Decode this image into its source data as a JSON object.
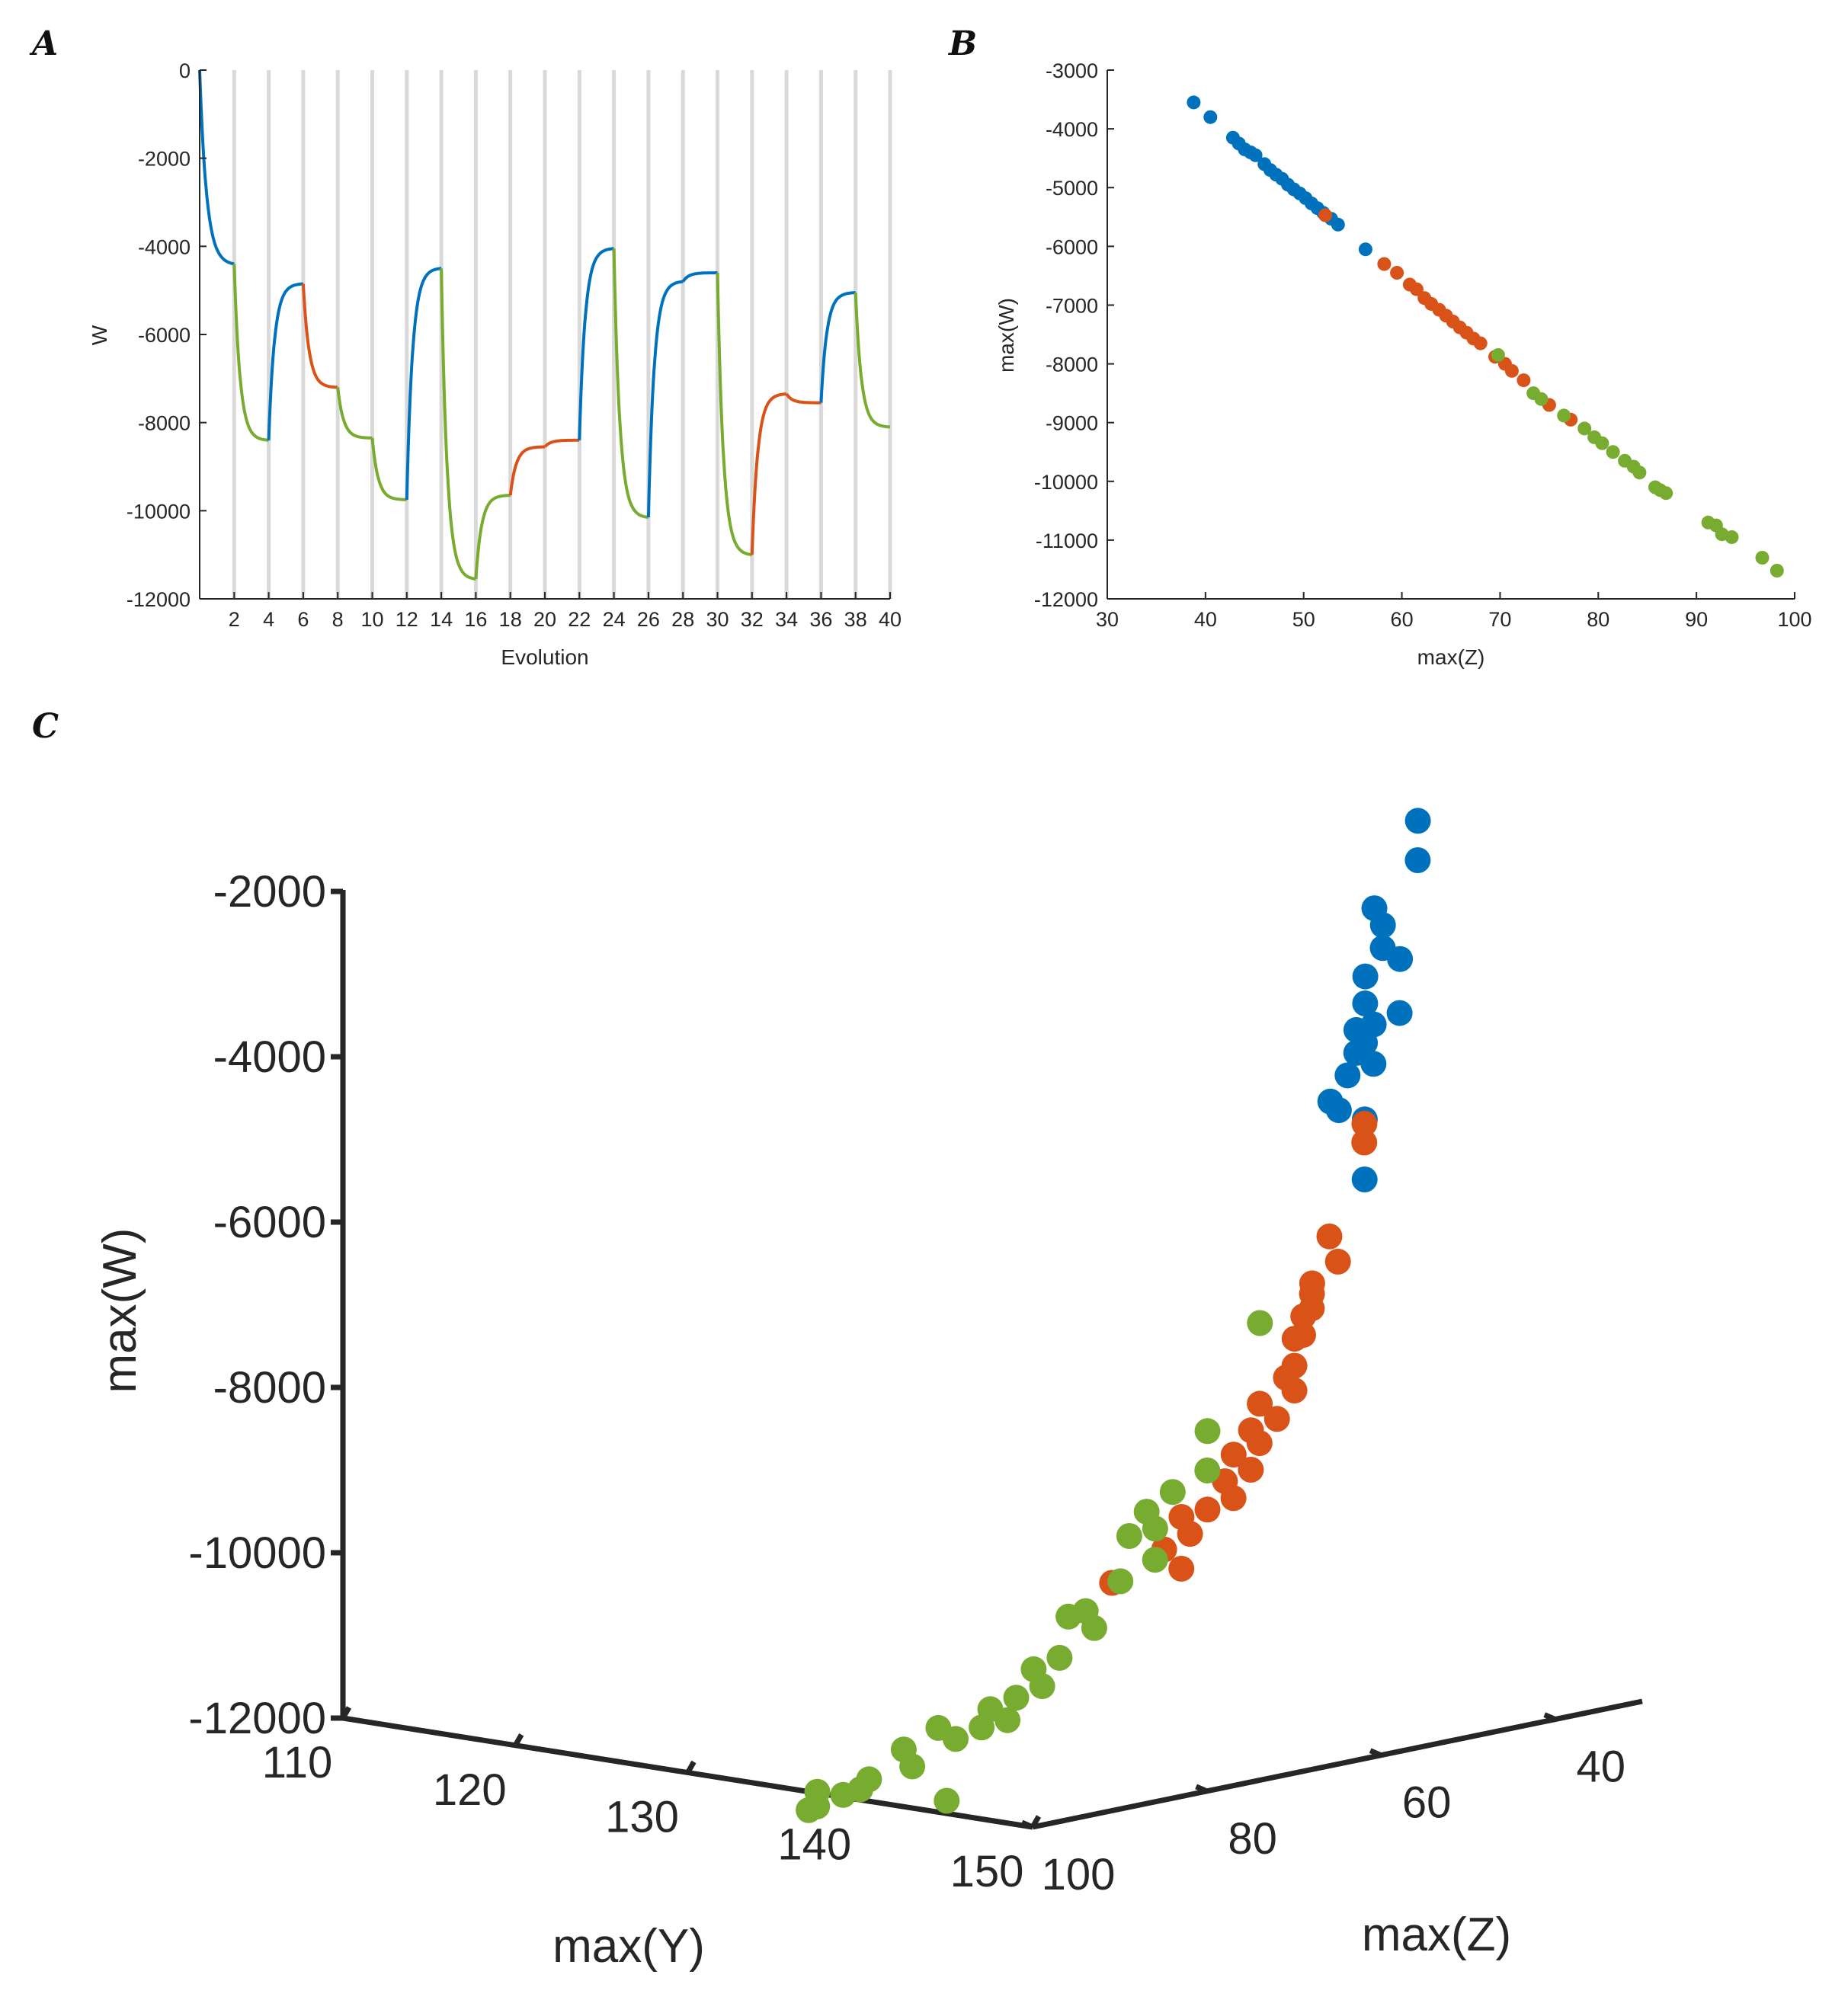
{
  "panels": {
    "A": {
      "letter": "A"
    },
    "B": {
      "letter": "B"
    },
    "C": {
      "letter": "C"
    }
  },
  "colors": {
    "blue": "#0072BD",
    "orange": "#D95319",
    "green": "#77AC30",
    "axis": "#262626",
    "grid": "#d9d9d9"
  },
  "chart_data": [
    {
      "id": "A",
      "type": "line",
      "title": "",
      "xlabel": "Evolution",
      "ylabel": "W",
      "xlim": [
        0,
        40
      ],
      "ylim": [
        -12000,
        0
      ],
      "xticks": [
        2,
        4,
        6,
        8,
        10,
        12,
        14,
        16,
        18,
        20,
        22,
        24,
        26,
        28,
        30,
        32,
        34,
        36,
        38,
        40
      ],
      "yticks": [
        0,
        -2000,
        -4000,
        -6000,
        -8000,
        -10000,
        -12000
      ],
      "vertical_gridlines": [
        2,
        4,
        6,
        8,
        10,
        12,
        14,
        16,
        18,
        20,
        22,
        24,
        26,
        28,
        30,
        32,
        34,
        36,
        38,
        40
      ],
      "segments": [
        {
          "x0": 0,
          "x1": 2,
          "start": 0,
          "end": -4400,
          "color": "blue"
        },
        {
          "x0": 2,
          "x1": 4,
          "start": -4400,
          "end": -8400,
          "color": "green"
        },
        {
          "x0": 4,
          "x1": 6,
          "start": -8400,
          "end": -4850,
          "color": "blue"
        },
        {
          "x0": 6,
          "x1": 8,
          "start": -4850,
          "end": -7200,
          "color": "orange"
        },
        {
          "x0": 8,
          "x1": 10,
          "start": -7200,
          "end": -8350,
          "color": "green"
        },
        {
          "x0": 10,
          "x1": 12,
          "start": -8350,
          "end": -9750,
          "color": "green"
        },
        {
          "x0": 12,
          "x1": 14,
          "start": -9750,
          "end": -4500,
          "color": "blue"
        },
        {
          "x0": 14,
          "x1": 16,
          "start": -4500,
          "end": -11550,
          "color": "green"
        },
        {
          "x0": 16,
          "x1": 18,
          "start": -11550,
          "end": -9650,
          "color": "green"
        },
        {
          "x0": 18,
          "x1": 20,
          "start": -9650,
          "end": -8550,
          "color": "orange"
        },
        {
          "x0": 20,
          "x1": 22,
          "start": -8550,
          "end": -8400,
          "color": "orange"
        },
        {
          "x0": 22,
          "x1": 24,
          "start": -8400,
          "end": -4050,
          "color": "blue"
        },
        {
          "x0": 24,
          "x1": 26,
          "start": -4050,
          "end": -10150,
          "color": "green"
        },
        {
          "x0": 26,
          "x1": 28,
          "start": -10150,
          "end": -4800,
          "color": "blue"
        },
        {
          "x0": 28,
          "x1": 30,
          "start": -4800,
          "end": -4600,
          "color": "blue"
        },
        {
          "x0": 30,
          "x1": 32,
          "start": -4600,
          "end": -11000,
          "color": "green"
        },
        {
          "x0": 32,
          "x1": 34,
          "start": -11000,
          "end": -7350,
          "color": "orange"
        },
        {
          "x0": 34,
          "x1": 36,
          "start": -7350,
          "end": -7550,
          "color": "orange"
        },
        {
          "x0": 36,
          "x1": 38,
          "start": -7550,
          "end": -5050,
          "color": "blue"
        },
        {
          "x0": 38,
          "x1": 40,
          "start": -5050,
          "end": -8100,
          "color": "green"
        }
      ]
    },
    {
      "id": "B",
      "type": "scatter",
      "title": "",
      "xlabel": "max(Z)",
      "ylabel": "max(W)",
      "xlim": [
        30,
        100
      ],
      "ylim": [
        -12000,
        -3000
      ],
      "xticks": [
        30,
        40,
        50,
        60,
        70,
        80,
        90,
        100
      ],
      "yticks": [
        -3000,
        -4000,
        -5000,
        -6000,
        -7000,
        -8000,
        -9000,
        -10000,
        -11000,
        -12000
      ],
      "series": [
        {
          "name": "blue",
          "color": "blue",
          "points": [
            [
              38.8,
              -3550
            ],
            [
              40.5,
              -3800
            ],
            [
              42.8,
              -4150
            ],
            [
              43.4,
              -4250
            ],
            [
              44,
              -4350
            ],
            [
              44.6,
              -4400
            ],
            [
              45.1,
              -4450
            ],
            [
              46,
              -4600
            ],
            [
              46.6,
              -4700
            ],
            [
              47.2,
              -4780
            ],
            [
              47.8,
              -4850
            ],
            [
              48.4,
              -4950
            ],
            [
              49,
              -5030
            ],
            [
              49.6,
              -5100
            ],
            [
              50.2,
              -5180
            ],
            [
              50.8,
              -5270
            ],
            [
              51.4,
              -5350
            ],
            [
              52,
              -5430
            ],
            [
              52.8,
              -5530
            ],
            [
              53.5,
              -5630
            ],
            [
              56.3,
              -6050
            ]
          ]
        },
        {
          "name": "orange",
          "color": "orange",
          "points": [
            [
              52.2,
              -5470
            ],
            [
              58.2,
              -6300
            ],
            [
              59.5,
              -6450
            ],
            [
              60.8,
              -6650
            ],
            [
              61.5,
              -6730
            ],
            [
              62.3,
              -6880
            ],
            [
              63,
              -6980
            ],
            [
              63.8,
              -7080
            ],
            [
              64.5,
              -7180
            ],
            [
              65.2,
              -7280
            ],
            [
              65.9,
              -7380
            ],
            [
              66.6,
              -7470
            ],
            [
              67.3,
              -7570
            ],
            [
              68,
              -7650
            ],
            [
              69.5,
              -7880
            ],
            [
              70.5,
              -8000
            ],
            [
              71.2,
              -8120
            ],
            [
              72.4,
              -8280
            ],
            [
              75,
              -8700
            ],
            [
              77.2,
              -8950
            ]
          ]
        },
        {
          "name": "green",
          "color": "green",
          "points": [
            [
              69.8,
              -7850
            ],
            [
              73.4,
              -8500
            ],
            [
              74.2,
              -8600
            ],
            [
              76.5,
              -8880
            ],
            [
              78.6,
              -9100
            ],
            [
              79.6,
              -9250
            ],
            [
              80.4,
              -9350
            ],
            [
              81.5,
              -9500
            ],
            [
              82.7,
              -9650
            ],
            [
              83.6,
              -9750
            ],
            [
              84.2,
              -9850
            ],
            [
              85.8,
              -10100
            ],
            [
              86.3,
              -10150
            ],
            [
              86.9,
              -10200
            ],
            [
              91.2,
              -10700
            ],
            [
              92,
              -10750
            ],
            [
              92.6,
              -10900
            ],
            [
              93.6,
              -10950
            ],
            [
              96.7,
              -11300
            ],
            [
              98.2,
              -11520
            ]
          ]
        }
      ]
    },
    {
      "id": "C",
      "type": "scatter3d",
      "title": "",
      "xlabel": "max(Y)",
      "ylabel": "max(Z)",
      "zlabel": "max(W)",
      "xlim": [
        110,
        150
      ],
      "ylim": [
        30,
        100
      ],
      "zlim": [
        -12000,
        -2000
      ],
      "xticks": [
        110,
        120,
        130,
        140,
        150
      ],
      "yticks": [
        40,
        60,
        80,
        100
      ],
      "zticks": [
        -2000,
        -4000,
        -6000,
        -8000,
        -10000,
        -12000
      ],
      "series": [
        {
          "name": "blue",
          "color": "blue",
          "points": [
            [
              138,
              32,
              -1700
            ],
            [
              139,
              34,
              -2100
            ],
            [
              138,
              37,
              -2650
            ],
            [
              139,
              38,
              -2800
            ],
            [
              140,
              40,
              -3000
            ],
            [
              141,
              40,
              -3100
            ],
            [
              140,
              42,
              -3300
            ],
            [
              141,
              44,
              -3550
            ],
            [
              142,
              45,
              -3750
            ],
            [
              141,
              45,
              -3850
            ],
            [
              142,
              46,
              -3950
            ],
            [
              143,
              47,
              -4150
            ],
            [
              142,
              48,
              -4300
            ],
            [
              141,
              48,
              -4650
            ],
            [
              142,
              49,
              -4700
            ],
            [
              143,
              48,
              -4800
            ],
            [
              144,
              50,
              -5450
            ],
            [
              143,
              44,
              -3600
            ],
            [
              142,
              47,
              -4050
            ]
          ]
        },
        {
          "name": "orange",
          "color": "orange",
          "points": [
            [
              145,
              52,
              -4700
            ],
            [
              146,
              54,
              -4850
            ],
            [
              146,
              58,
              -5900
            ],
            [
              147,
              59,
              -6150
            ],
            [
              145,
              58,
              -6500
            ],
            [
              146,
              60,
              -6550
            ],
            [
              147,
              62,
              -6650
            ],
            [
              146,
              61,
              -6800
            ],
            [
              147,
              63,
              -6950
            ],
            [
              146,
              62,
              -7050
            ],
            [
              147,
              64,
              -7300
            ],
            [
              146,
              63,
              -7500
            ],
            [
              147,
              64,
              -7600
            ],
            [
              146,
              66,
              -7750
            ],
            [
              147,
              66,
              -7900
            ],
            [
              146,
              67,
              -8050
            ],
            [
              147,
              68,
              -8150
            ],
            [
              146,
              69,
              -8300
            ],
            [
              147,
              69,
              -8450
            ],
            [
              146,
              70,
              -8600
            ],
            [
              147,
              71,
              -8750
            ],
            [
              146,
              72,
              -8900
            ],
            [
              145,
              73,
              -9000
            ],
            [
              146,
              74,
              -9150
            ],
            [
              145,
              75,
              -9350
            ],
            [
              146,
              75,
              -9550
            ],
            [
              144,
              79,
              -9700
            ]
          ]
        },
        {
          "name": "green",
          "color": "green",
          "points": [
            [
              145,
              64,
              -6850
            ],
            [
              146,
              72,
              -7950
            ],
            [
              147,
              74,
              -8350
            ],
            [
              146,
              76,
              -8600
            ],
            [
              145,
              77,
              -8850
            ],
            [
              146,
              78,
              -9000
            ],
            [
              145,
              79,
              -9100
            ],
            [
              147,
              80,
              -9300
            ],
            [
              146,
              82,
              -9550
            ],
            [
              145,
              84,
              -9900
            ],
            [
              146,
              85,
              -10050
            ],
            [
              144,
              84,
              -10000
            ],
            [
              145,
              87,
              -10400
            ],
            [
              144,
              88,
              -10550
            ],
            [
              145,
              89,
              -10700
            ],
            [
              144,
              90,
              -10850
            ],
            [
              143,
              91,
              -11000
            ],
            [
              144,
              91,
              -11100
            ],
            [
              143,
              92,
              -11200
            ],
            [
              142,
              93,
              -11350
            ],
            [
              141,
              93,
              -11250
            ],
            [
              140,
              95,
              -11500
            ],
            [
              141,
              96,
              -11650
            ],
            [
              139,
              97,
              -11850
            ],
            [
              139,
              98,
              -11950
            ],
            [
              138,
              98,
              -12050
            ],
            [
              137,
              99,
              -12200
            ],
            [
              143,
              96,
              -12000
            ],
            [
              136,
              97,
              -12100
            ],
            [
              136,
              98,
              -12300
            ]
          ]
        }
      ]
    }
  ]
}
